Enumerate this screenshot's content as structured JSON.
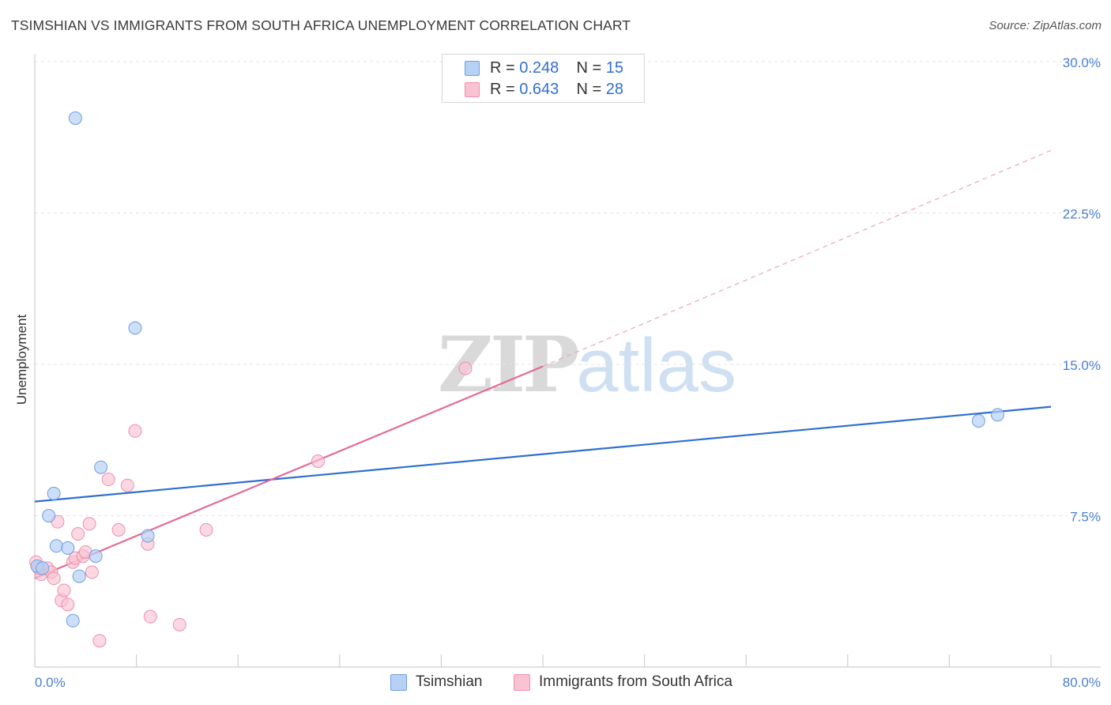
{
  "title": "TSIMSHIAN VS IMMIGRANTS FROM SOUTH AFRICA UNEMPLOYMENT CORRELATION CHART",
  "source": "Source: ZipAtlas.com",
  "watermark": {
    "zip": "ZIP",
    "atlas": "atlas"
  },
  "legend": {
    "rows": [
      {
        "r_label": "R = ",
        "r_value": "0.248",
        "n_label": "N = ",
        "n_value": "15"
      },
      {
        "r_label": "R = ",
        "r_value": "0.643",
        "n_label": "N = ",
        "n_value": "28"
      }
    ]
  },
  "colors": {
    "blue_fill": "#b7d0f5",
    "blue_stroke": "#6f9fe0",
    "blue_line": "#2f6fd0",
    "pink_fill": "#f9c3d3",
    "pink_stroke": "#ec8fae",
    "pink_line": "#e36b97",
    "tick_text": "#4a7fd0"
  },
  "chart_data": {
    "type": "scatter",
    "title": "TSIMSHIAN VS IMMIGRANTS FROM SOUTH AFRICA UNEMPLOYMENT CORRELATION CHART",
    "xlabel": "",
    "ylabel": "Unemployment",
    "xlim": [
      0,
      80
    ],
    "ylim": [
      0,
      30
    ],
    "x_tick_labels": [
      "0.0%",
      "80.0%"
    ],
    "y_ticks": [
      7.5,
      15.0,
      22.5,
      30.0
    ],
    "y_tick_labels": [
      "7.5%",
      "15.0%",
      "22.5%",
      "30.0%"
    ],
    "grid": true,
    "legend_position": "top-center",
    "series": [
      {
        "name": "Tsimshian",
        "color": "blue",
        "points": [
          [
            0.2,
            5.0
          ],
          [
            0.6,
            4.9
          ],
          [
            1.1,
            7.5
          ],
          [
            1.5,
            8.6
          ],
          [
            1.7,
            6.0
          ],
          [
            2.6,
            5.9
          ],
          [
            3.0,
            2.3
          ],
          [
            3.2,
            27.2
          ],
          [
            3.5,
            4.5
          ],
          [
            4.8,
            5.5
          ],
          [
            5.2,
            9.9
          ],
          [
            7.9,
            16.8
          ],
          [
            8.9,
            6.5
          ],
          [
            74.3,
            12.2
          ],
          [
            75.8,
            12.5
          ]
        ],
        "trend": {
          "x": [
            0,
            80
          ],
          "y": [
            8.2,
            12.9
          ]
        }
      },
      {
        "name": "Immigrants from South Africa",
        "color": "pink",
        "points": [
          [
            0.1,
            5.2
          ],
          [
            0.5,
            4.6
          ],
          [
            1.0,
            4.9
          ],
          [
            1.3,
            4.7
          ],
          [
            1.5,
            4.4
          ],
          [
            1.8,
            7.2
          ],
          [
            2.1,
            3.3
          ],
          [
            2.3,
            3.8
          ],
          [
            2.6,
            3.1
          ],
          [
            3.0,
            5.2
          ],
          [
            3.2,
            5.4
          ],
          [
            3.4,
            6.6
          ],
          [
            3.8,
            5.5
          ],
          [
            4.0,
            5.7
          ],
          [
            4.3,
            7.1
          ],
          [
            4.5,
            4.7
          ],
          [
            5.1,
            1.3
          ],
          [
            5.8,
            9.3
          ],
          [
            6.6,
            6.8
          ],
          [
            7.3,
            9.0
          ],
          [
            7.9,
            11.7
          ],
          [
            8.9,
            6.1
          ],
          [
            9.1,
            2.5
          ],
          [
            11.4,
            2.1
          ],
          [
            13.5,
            6.8
          ],
          [
            22.3,
            10.2
          ],
          [
            33.9,
            14.8
          ],
          [
            0.3,
            4.9
          ]
        ],
        "trend": {
          "x": [
            0,
            40
          ],
          "y": [
            4.4,
            14.9
          ]
        },
        "trend_dashed": {
          "x": [
            40,
            80
          ],
          "y": [
            14.9,
            25.6
          ]
        }
      }
    ]
  },
  "bottom_legend": [
    {
      "label": "Tsimshian"
    },
    {
      "label": "Immigrants from South Africa"
    }
  ]
}
